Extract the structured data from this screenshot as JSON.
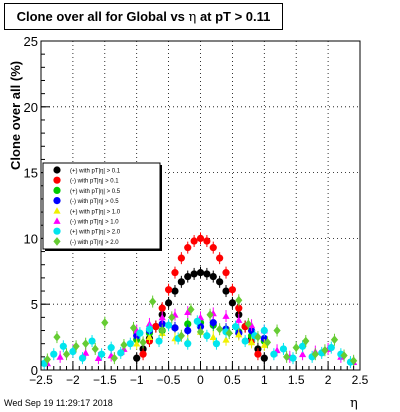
{
  "title": {
    "prefix": "Clone  over all for Global vs ",
    "eta_symbol": "η",
    "suffix": " at pT > 0.11"
  },
  "timestamp": "Wed Sep 19 11:29:17 2018",
  "x_axis_label": "η",
  "chart_data": {
    "type": "scatter",
    "ylabel": "Clone  over all (%)",
    "xlabel": "η",
    "xlim": [
      -2.5,
      2.5
    ],
    "ylim": [
      0,
      25
    ],
    "xticks": [
      "−2.5",
      "−2",
      "−1.5",
      "−1",
      "−0.5",
      "0",
      "0.5",
      "1",
      "1.5",
      "2",
      "2.5"
    ],
    "yticks": [
      "0",
      "5",
      "10",
      "15",
      "20",
      "25"
    ],
    "grid": true,
    "legend_position": "left-middle",
    "series": [
      {
        "name": "(+) with pT|η| > 0.1",
        "color": "#000000",
        "marker": "circle",
        "x": [
          -1.0,
          -0.9,
          -0.8,
          -0.7,
          -0.6,
          -0.5,
          -0.4,
          -0.3,
          -0.2,
          -0.1,
          0.0,
          0.1,
          0.2,
          0.3,
          0.4,
          0.5,
          0.6,
          0.7,
          0.8,
          0.9,
          1.0
        ],
        "y": [
          0.9,
          1.6,
          2.4,
          3.3,
          4.2,
          5.1,
          6.0,
          6.7,
          7.1,
          7.3,
          7.4,
          7.3,
          7.1,
          6.7,
          6.0,
          5.1,
          4.2,
          3.3,
          2.4,
          1.6,
          0.9
        ]
      },
      {
        "name": "(-) with pT|η| > 0.1",
        "color": "#ff0000",
        "marker": "circle",
        "x": [
          -0.9,
          -0.8,
          -0.7,
          -0.6,
          -0.5,
          -0.4,
          -0.3,
          -0.2,
          -0.1,
          0.0,
          0.1,
          0.2,
          0.3,
          0.4,
          0.5,
          0.6,
          0.7,
          0.8,
          0.9
        ],
        "y": [
          1.2,
          2.2,
          3.3,
          4.7,
          6.1,
          7.4,
          8.5,
          9.3,
          9.8,
          10.0,
          9.8,
          9.3,
          8.5,
          7.4,
          6.1,
          4.7,
          3.3,
          2.2,
          1.2
        ]
      },
      {
        "name": "(+) with pT|η| > 0.5",
        "color": "#00cc00",
        "marker": "circle",
        "x": [
          -1.0,
          -0.8,
          -0.6,
          -0.4,
          -0.2,
          0.0,
          0.2,
          0.4,
          0.6,
          0.8,
          1.0
        ],
        "y": [
          2.3,
          2.8,
          3.0,
          3.2,
          3.5,
          3.6,
          3.4,
          3.1,
          2.9,
          2.6,
          2.2
        ]
      },
      {
        "name": "(-) with pT|η| > 0.5",
        "color": "#0000ff",
        "marker": "circle",
        "x": [
          -1.0,
          -0.8,
          -0.6,
          -0.4,
          -0.2,
          0.0,
          0.2,
          0.4,
          0.6,
          0.8,
          1.0
        ],
        "y": [
          2.6,
          3.0,
          3.5,
          3.2,
          3.0,
          3.3,
          3.6,
          3.1,
          2.8,
          3.0,
          2.4
        ]
      },
      {
        "name": "(+) with pT|η| > 1.0",
        "color": "#f0f000",
        "marker": "triangle",
        "x": [
          -1.0,
          -0.8,
          -0.6,
          -0.4,
          -0.2,
          0.0,
          0.2,
          0.4,
          0.6,
          0.8,
          1.0
        ],
        "y": [
          2.0,
          2.5,
          2.8,
          2.4,
          2.2,
          2.9,
          2.5,
          2.3,
          2.7,
          2.1,
          1.9
        ]
      },
      {
        "name": "(-) with pT|η| > 1.0",
        "color": "#ff00ff",
        "marker": "triangle",
        "x": [
          -2.4,
          -2.2,
          -2.0,
          -1.8,
          -1.6,
          -1.4,
          -1.2,
          -1.0,
          -0.8,
          -0.6,
          -0.4,
          -0.2,
          0.0,
          0.2,
          0.4,
          0.6,
          0.8,
          1.0,
          1.2,
          1.4,
          1.6,
          1.8,
          2.0,
          2.2,
          2.4
        ],
        "y": [
          0.5,
          1.0,
          1.5,
          1.3,
          0.9,
          1.1,
          1.6,
          3.0,
          3.5,
          4.0,
          4.2,
          4.4,
          4.0,
          4.3,
          4.1,
          3.8,
          3.4,
          3.0,
          1.5,
          1.0,
          1.2,
          1.4,
          1.6,
          1.0,
          0.6
        ]
      },
      {
        "name": "(+) with pT|η| > 2.0",
        "color": "#00e5ee",
        "marker": "circle",
        "x": [
          -2.45,
          -2.3,
          -2.15,
          -2.0,
          -1.85,
          -1.7,
          -1.55,
          -1.4,
          -1.25,
          -1.1,
          -0.95,
          -0.8,
          -0.65,
          -0.5,
          -0.35,
          -0.2,
          -0.05,
          0.1,
          0.25,
          0.4,
          0.55,
          0.7,
          0.85,
          1.0,
          1.15,
          1.3,
          1.45,
          1.6,
          1.75,
          1.9,
          2.05,
          2.2,
          2.35
        ],
        "y": [
          0.5,
          1.2,
          1.8,
          1.4,
          0.9,
          2.2,
          1.2,
          1.7,
          1.3,
          2.0,
          2.8,
          3.1,
          2.2,
          3.4,
          2.4,
          2.0,
          3.7,
          2.6,
          2.0,
          2.9,
          3.3,
          2.2,
          2.6,
          3.0,
          1.2,
          1.6,
          0.9,
          1.8,
          1.0,
          1.3,
          1.7,
          1.2,
          0.6
        ]
      },
      {
        "name": "(-) with pT|η| > 2.0",
        "color": "#66cc33",
        "marker": "diamond",
        "x": [
          -2.4,
          -2.25,
          -2.1,
          -1.95,
          -1.8,
          -1.65,
          -1.5,
          -1.35,
          -1.2,
          -1.05,
          -0.9,
          -0.75,
          -0.6,
          -0.45,
          -0.3,
          -0.15,
          0.0,
          0.15,
          0.3,
          0.45,
          0.6,
          0.75,
          0.9,
          1.05,
          1.2,
          1.35,
          1.5,
          1.65,
          1.8,
          1.95,
          2.1,
          2.25,
          2.4
        ],
        "y": [
          0.8,
          2.5,
          1.2,
          1.8,
          2.0,
          1.6,
          3.6,
          0.9,
          1.9,
          3.2,
          2.1,
          5.2,
          3.0,
          4.0,
          2.6,
          4.6,
          2.9,
          4.2,
          3.1,
          2.8,
          5.3,
          3.5,
          2.5,
          2.1,
          3.0,
          1.0,
          1.7,
          2.2,
          1.2,
          1.5,
          2.3,
          1.1,
          0.7
        ]
      }
    ]
  }
}
